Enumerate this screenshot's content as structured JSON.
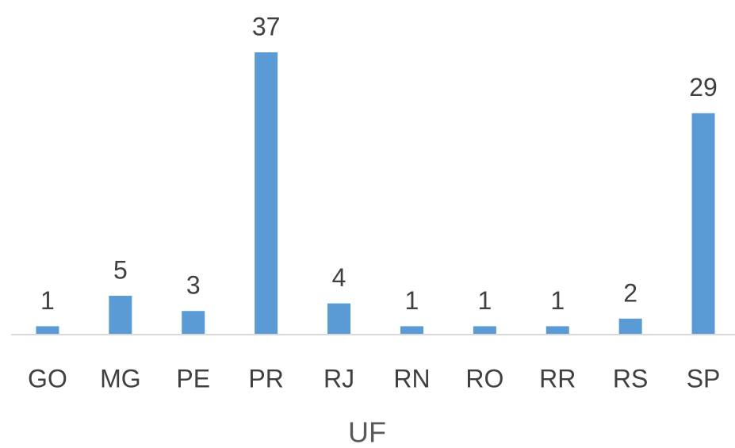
{
  "chart_data": {
    "type": "bar",
    "x_label": "UF",
    "categories": [
      "GO",
      "MG",
      "PE",
      "PR",
      "RJ",
      "RN",
      "RO",
      "RR",
      "RS",
      "SP"
    ],
    "values": [
      1,
      5,
      3,
      37,
      4,
      1,
      1,
      1,
      2,
      29
    ],
    "color": "#5b9bd5"
  }
}
